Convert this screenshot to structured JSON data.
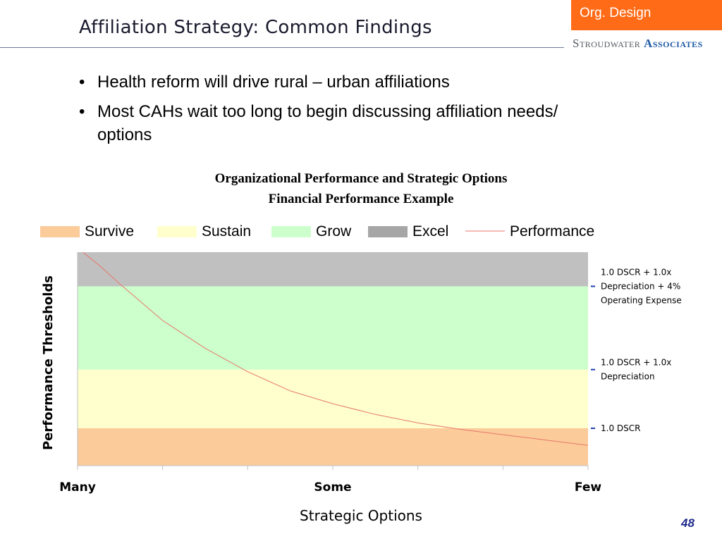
{
  "header": {
    "title": "Affiliation Strategy: Common Findings",
    "tag": "Org. Design",
    "tag_color": "#ff6b17",
    "logo_word1": "Stroudwater",
    "logo_word2": "Associates"
  },
  "bullets": [
    "Health reform will drive rural – urban affiliations",
    "Most CAHs wait too long to begin discussing affiliation needs/ options"
  ],
  "chart_data": {
    "type": "area",
    "title": "Organizational Performance and Strategic Options",
    "subtitle": "Financial Performance Example",
    "xlabel": "Strategic Options",
    "ylabel": "Performance Thresholds",
    "x_tick_labels": [
      "Many",
      "Some",
      "Few"
    ],
    "xlim": [
      0,
      6
    ],
    "ylim": [
      0,
      100
    ],
    "legend_position": "top",
    "bands": [
      {
        "name": "Survive",
        "from": 0,
        "to": 17.5,
        "color": "#fbcb9a"
      },
      {
        "name": "Sustain",
        "from": 17.5,
        "to": 45,
        "color": "#feffcc"
      },
      {
        "name": "Grow",
        "from": 45,
        "to": 84,
        "color": "#ccffcc"
      },
      {
        "name": "Excel",
        "from": 84,
        "to": 100,
        "color": "#c0c0c0"
      }
    ],
    "legend_swatch_colors": {
      "Survive": "#fbcb9a",
      "Sustain": "#feffcc",
      "Grow": "#ccffcc",
      "Excel": "#a6a6a6"
    },
    "series": [
      {
        "name": "Performance",
        "color": "#e8776c",
        "x": [
          0,
          0.25,
          0.5,
          1,
          1.5,
          2,
          2.5,
          3,
          3.5,
          4,
          4.5,
          5,
          5.5,
          6
        ],
        "y": [
          102,
          94,
          85,
          68,
          55,
          44,
          35,
          29,
          24,
          20,
          17,
          14.5,
          12,
          9.5
        ]
      }
    ],
    "thresholds": [
      {
        "y": 84,
        "label_lines": [
          "1.0 DSCR + 1.0x",
          "Depreciation + 4%",
          "Operating Expense"
        ]
      },
      {
        "y": 45,
        "label_lines": [
          "1.0 DSCR + 1.0x",
          "Depreciation"
        ]
      },
      {
        "y": 17.5,
        "label_lines": [
          "1.0 DSCR"
        ]
      }
    ],
    "threshold_tick_color": "#1f3fb0"
  },
  "footer": {
    "page_number": "48"
  }
}
